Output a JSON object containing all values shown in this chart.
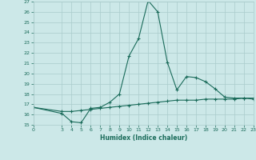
{
  "xlabel": "Humidex (Indice chaleur)",
  "background_color": "#cce8e8",
  "grid_color": "#aacccc",
  "line_color": "#1a6b5a",
  "xlim": [
    0,
    23
  ],
  "ylim": [
    15,
    27
  ],
  "xticks": [
    0,
    3,
    4,
    5,
    6,
    7,
    8,
    9,
    10,
    11,
    12,
    13,
    14,
    15,
    16,
    17,
    18,
    19,
    20,
    21,
    22,
    23
  ],
  "yticks": [
    15,
    16,
    17,
    18,
    19,
    20,
    21,
    22,
    23,
    24,
    25,
    26,
    27
  ],
  "curve1_x": [
    0,
    3,
    4,
    5,
    6,
    7,
    8,
    9,
    10,
    11,
    12,
    13,
    14,
    15,
    16,
    17,
    18,
    19,
    20,
    21,
    22,
    23
  ],
  "curve1_y": [
    16.7,
    16.1,
    15.3,
    15.2,
    16.6,
    16.7,
    17.2,
    18.0,
    21.7,
    23.4,
    27.1,
    26.0,
    21.1,
    18.4,
    19.7,
    19.6,
    19.2,
    18.5,
    17.7,
    17.6,
    17.6,
    17.5
  ],
  "curve2_x": [
    0,
    3,
    4,
    5,
    6,
    7,
    8,
    9,
    10,
    11,
    12,
    13,
    14,
    15,
    16,
    17,
    18,
    19,
    20,
    21,
    22,
    23
  ],
  "curve2_y": [
    16.7,
    16.3,
    16.3,
    16.4,
    16.5,
    16.6,
    16.7,
    16.8,
    16.9,
    17.0,
    17.1,
    17.2,
    17.3,
    17.4,
    17.4,
    17.4,
    17.5,
    17.5,
    17.5,
    17.5,
    17.6,
    17.6
  ]
}
